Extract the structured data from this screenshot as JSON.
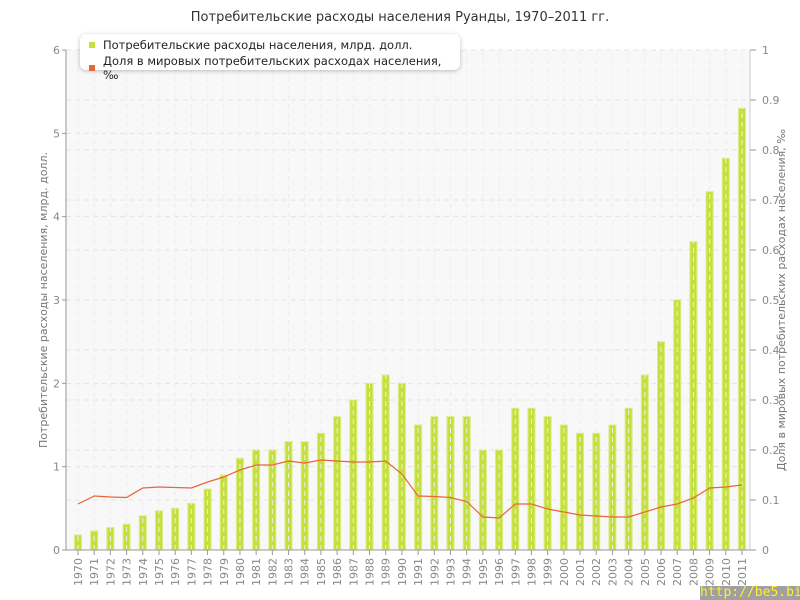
{
  "chart_data": {
    "type": "bar+line",
    "title": "Потребительские расходы населения Руанды, 1970–2011 гг.",
    "ylabel": "Потребительские расходы населения, млрд. долл.",
    "ylabel_right": "Доля в мировых потребительских расходах населения, ‰",
    "ylim": [
      0,
      6
    ],
    "ylim_right": [
      0,
      1
    ],
    "yticks": [
      "0",
      "1",
      "2",
      "3",
      "4",
      "5",
      "6"
    ],
    "yticks_right": [
      "0",
      "0.1",
      "0.2",
      "0.3",
      "0.4",
      "0.5",
      "0.6",
      "0.7",
      "0.8",
      "0.9",
      "1"
    ],
    "grid": true,
    "legend_position": "top-left",
    "categories": [
      "1970",
      "1971",
      "1972",
      "1973",
      "1974",
      "1975",
      "1976",
      "1977",
      "1978",
      "1979",
      "1980",
      "1981",
      "1982",
      "1983",
      "1984",
      "1985",
      "1986",
      "1987",
      "1988",
      "1989",
      "1990",
      "1991",
      "1992",
      "1993",
      "1994",
      "1995",
      "1996",
      "1997",
      "1998",
      "1999",
      "2000",
      "2001",
      "2002",
      "2003",
      "2004",
      "2005",
      "2006",
      "2007",
      "2008",
      "2009",
      "2010",
      "2011"
    ],
    "series": [
      {
        "name": "Потребительские расходы населения, млрд. долл.",
        "type": "bar",
        "axis": "left",
        "color": "#c5e03a",
        "values": [
          0.18,
          0.23,
          0.27,
          0.31,
          0.41,
          0.47,
          0.5,
          0.56,
          0.73,
          0.9,
          1.1,
          1.2,
          1.2,
          1.3,
          1.3,
          1.4,
          1.6,
          1.8,
          2.0,
          2.1,
          2.0,
          1.5,
          1.6,
          1.6,
          1.6,
          1.2,
          1.2,
          1.7,
          1.7,
          1.6,
          1.5,
          1.4,
          1.4,
          1.5,
          1.7,
          2.1,
          2.5,
          3.0,
          3.7,
          4.3,
          4.7,
          5.3
        ]
      },
      {
        "name": "Доля в мировых потребительских расходах населения, ‰",
        "type": "line",
        "axis": "right",
        "color": "#e8663a",
        "values": [
          0.092,
          0.108,
          0.106,
          0.105,
          0.124,
          0.126,
          0.125,
          0.124,
          0.136,
          0.146,
          0.16,
          0.17,
          0.17,
          0.178,
          0.174,
          0.18,
          0.178,
          0.176,
          0.176,
          0.178,
          0.152,
          0.108,
          0.107,
          0.105,
          0.097,
          0.066,
          0.064,
          0.092,
          0.092,
          0.082,
          0.076,
          0.07,
          0.068,
          0.066,
          0.066,
          0.076,
          0.086,
          0.092,
          0.104,
          0.124,
          0.126,
          0.13
        ]
      }
    ]
  },
  "watermark": "http://be5.biz/"
}
